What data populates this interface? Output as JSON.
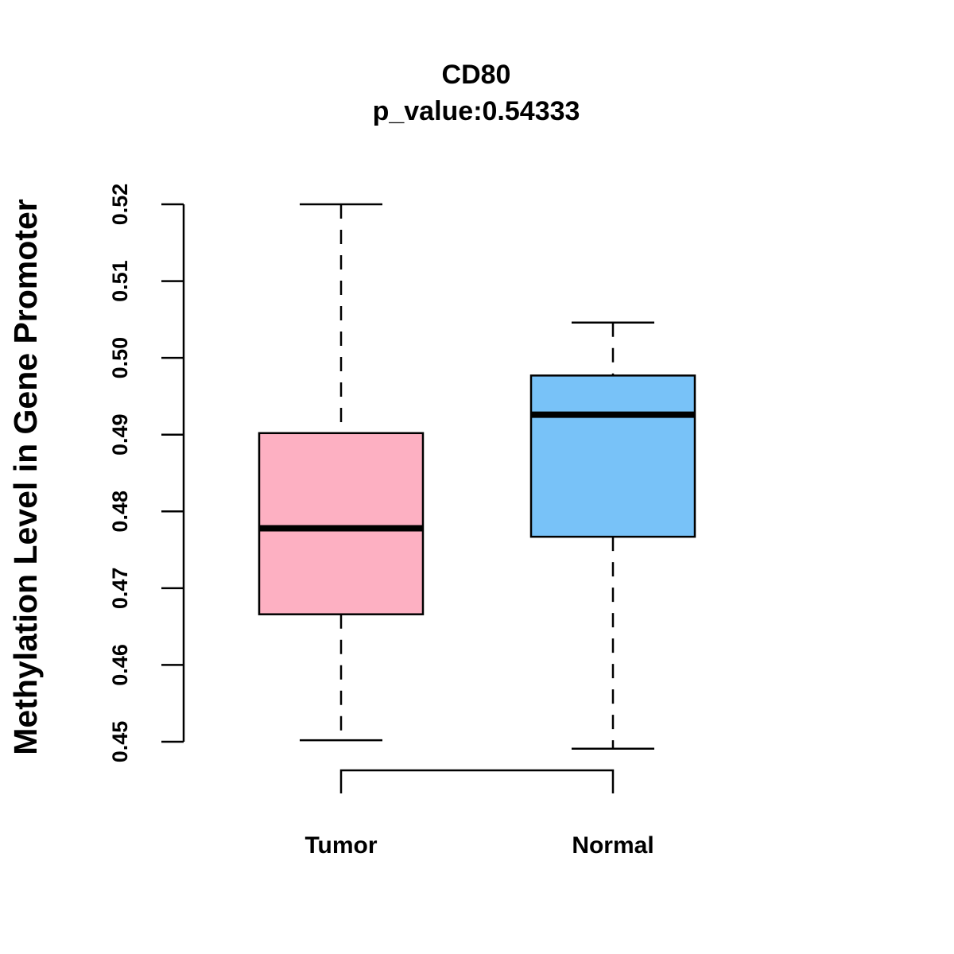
{
  "chart_data": {
    "type": "boxplot",
    "title": "CD80",
    "subtitle": "p_value:0.54333",
    "xlabel": "",
    "ylabel": "Methylation Level in Gene Promoter",
    "ylim": [
      0.45,
      0.52
    ],
    "yticks": [
      "0.45",
      "0.46",
      "0.47",
      "0.48",
      "0.49",
      "0.50",
      "0.51",
      "0.52"
    ],
    "categories": [
      "Tumor",
      "Normal"
    ],
    "series": [
      {
        "name": "Tumor",
        "min": 0.4502,
        "q1": 0.4666,
        "median": 0.4778,
        "q3": 0.4902,
        "max": 0.52,
        "color": "#FDB0C2"
      },
      {
        "name": "Normal",
        "min": 0.4491,
        "q1": 0.4767,
        "median": 0.4926,
        "q3": 0.4977,
        "max": 0.5046,
        "color": "#78C2F8"
      }
    ],
    "comparison_bracket": [
      "Tumor",
      "Normal"
    ],
    "grid": false,
    "legend": "none"
  }
}
